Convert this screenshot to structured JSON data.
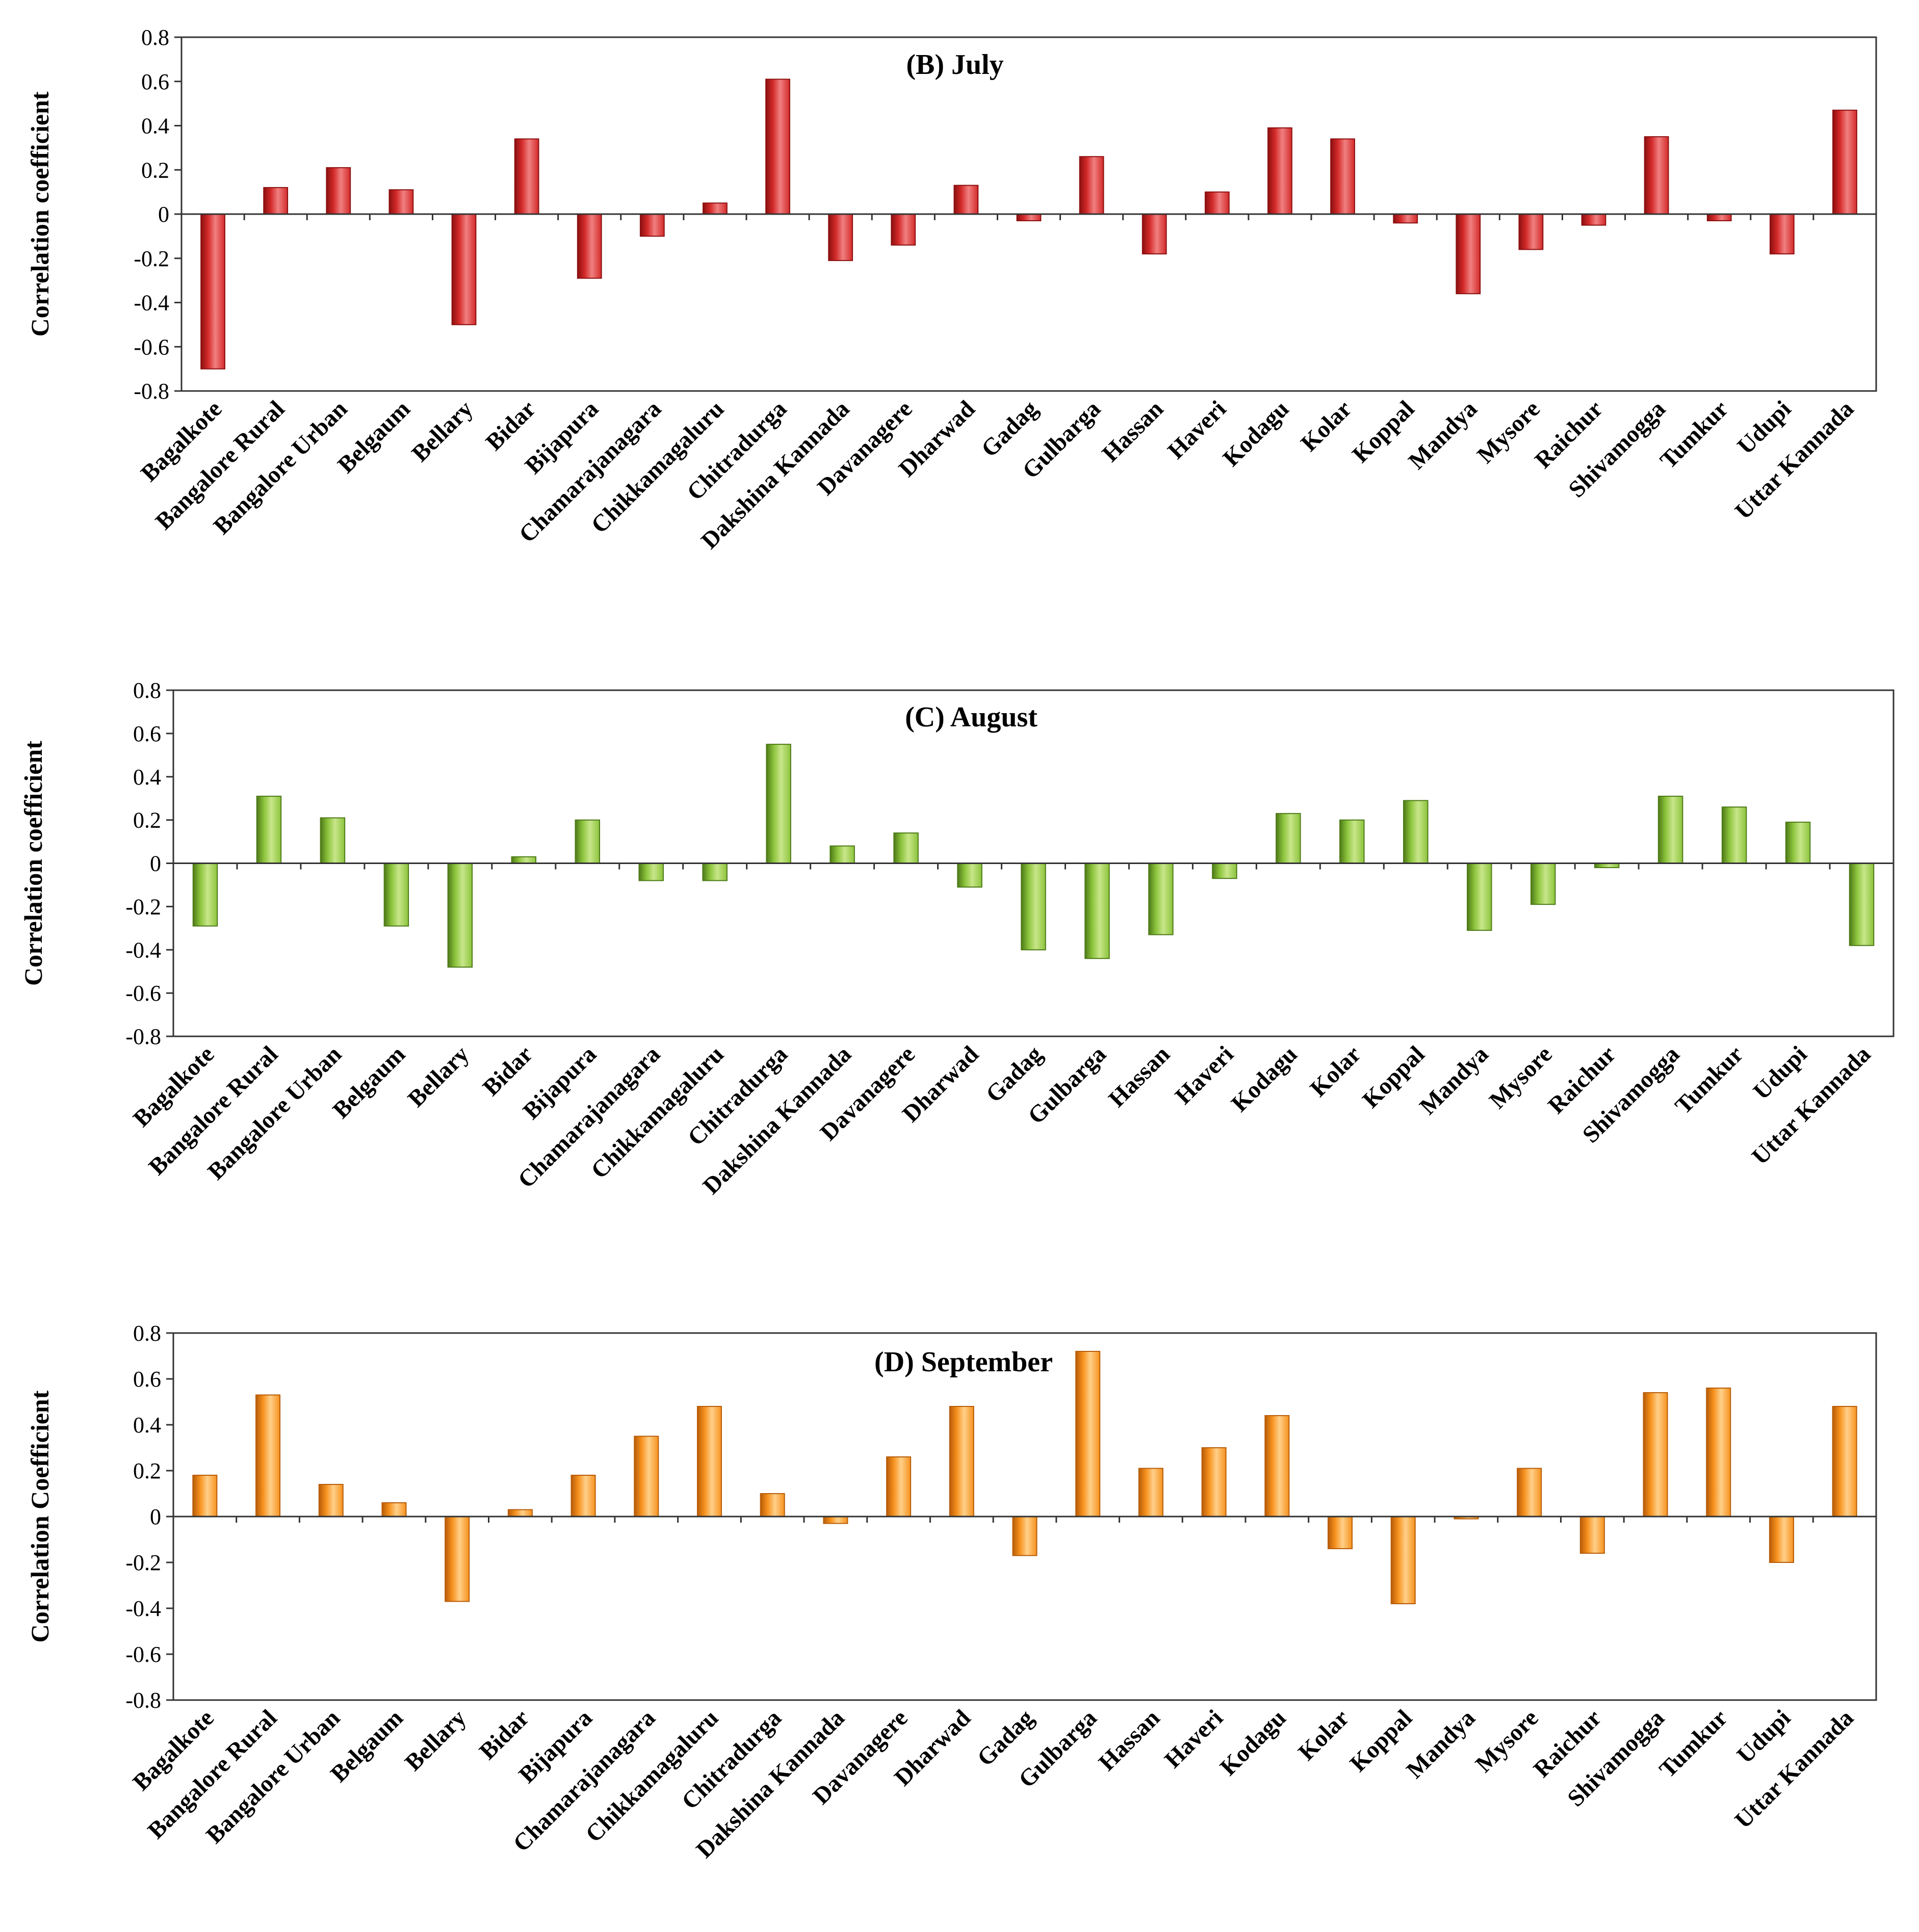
{
  "chart_data": [
    {
      "type": "bar",
      "title": "(B) July",
      "ylabel": "Correlation coefficient",
      "xlabel": "",
      "ylim": [
        -0.8,
        0.8
      ],
      "ytick_labels": [
        "0.8",
        "0.6",
        "0.4",
        "0.2",
        "0",
        "-0.2",
        "-0.4",
        "-0.6",
        "-0.8"
      ],
      "color_top": "#f08080",
      "color_main": "#d42a2a",
      "color_dark": "#8c1010",
      "categories": [
        "Bagalkote",
        "Bangalore Rural",
        "Bangalore Urban",
        "Belgaum",
        "Bellary",
        "Bidar",
        "Bijapura",
        "Chamarajanagara",
        "Chikkamagaluru",
        "Chitradurga",
        "Dakshina Kannada",
        "Davanagere",
        "Dharwad",
        "Gadag",
        "Gulbarga",
        "Hassan",
        "Haveri",
        "Kodagu",
        "Kolar",
        "Koppal",
        "Mandya",
        "Mysore",
        "Raichur",
        "Shivamogga",
        "Tumkur",
        "Udupi",
        "Uttar Kannada"
      ],
      "values": [
        -0.7,
        0.12,
        0.21,
        0.11,
        -0.5,
        0.34,
        -0.29,
        -0.1,
        0.05,
        0.61,
        -0.21,
        -0.14,
        0.13,
        -0.03,
        0.26,
        -0.18,
        0.1,
        0.39,
        0.34,
        -0.04,
        -0.36,
        -0.16,
        -0.05,
        0.35,
        -0.03,
        -0.18,
        0.47
      ]
    },
    {
      "type": "bar",
      "title": "(C) August",
      "ylabel": "Correlation coefficient",
      "xlabel": "",
      "ylim": [
        -0.8,
        0.8
      ],
      "ytick_labels": [
        "0.8",
        "0.6",
        "0.4",
        "0.2",
        "0",
        "-0.2",
        "-0.4",
        "-0.6",
        "-0.8"
      ],
      "color_top": "#c8e68a",
      "color_main": "#8cc43c",
      "color_dark": "#4e7a18",
      "categories": [
        "Bagalkote",
        "Bangalore Rural",
        "Bangalore Urban",
        "Belgaum",
        "Bellary",
        "Bidar",
        "Bijapura",
        "Chamarajanagara",
        "Chikkamagaluru",
        "Chitradurga",
        "Dakshina Kannada",
        "Davanagere",
        "Dharwad",
        "Gadag",
        "Gulbarga",
        "Hassan",
        "Haveri",
        "Kodagu",
        "Kolar",
        "Koppal",
        "Mandya",
        "Mysore",
        "Raichur",
        "Shivamogga",
        "Tumkur",
        "Udupi",
        "Uttar Kannada"
      ],
      "values": [
        -0.29,
        0.31,
        0.21,
        -0.29,
        -0.48,
        0.03,
        0.2,
        -0.08,
        -0.08,
        0.55,
        0.08,
        0.14,
        -0.11,
        -0.4,
        -0.44,
        -0.33,
        -0.07,
        0.23,
        0.2,
        0.29,
        -0.31,
        -0.19,
        -0.02,
        0.31,
        0.26,
        0.19,
        -0.38
      ]
    },
    {
      "type": "bar",
      "title": "(D) September",
      "ylabel": "Correlation Coefficient",
      "xlabel": "",
      "ylim": [
        -0.8,
        0.8
      ],
      "ytick_labels": [
        "0.8",
        "0.6",
        "0.4",
        "0.2",
        "0",
        "-0.2",
        "-0.4",
        "-0.6",
        "-0.8"
      ],
      "color_top": "#ffd08a",
      "color_main": "#f7921e",
      "color_dark": "#b85c08",
      "categories": [
        "Bagalkote",
        "Bangalore Rural",
        "Bangalore Urban",
        "Belgaum",
        "Bellary",
        "Bidar",
        "Bijapura",
        "Chamarajanagara",
        "Chikkamagaluru",
        "Chitradurga",
        "Dakshina Kannada",
        "Davanagere",
        "Dharwad",
        "Gadag",
        "Gulbarga",
        "Hassan",
        "Haveri",
        "Kodagu",
        "Kolar",
        "Koppal",
        "Mandya",
        "Mysore",
        "Raichur",
        "Shivamogga",
        "Tumkur",
        "Udupi",
        "Uttar Kannada"
      ],
      "values": [
        0.18,
        0.53,
        0.14,
        0.06,
        -0.37,
        0.03,
        0.18,
        0.35,
        0.48,
        0.1,
        -0.03,
        0.26,
        0.48,
        -0.17,
        0.72,
        0.21,
        0.3,
        0.44,
        -0.14,
        -0.38,
        -0.01,
        0.21,
        -0.16,
        0.54,
        0.56,
        -0.2,
        0.48
      ]
    }
  ]
}
